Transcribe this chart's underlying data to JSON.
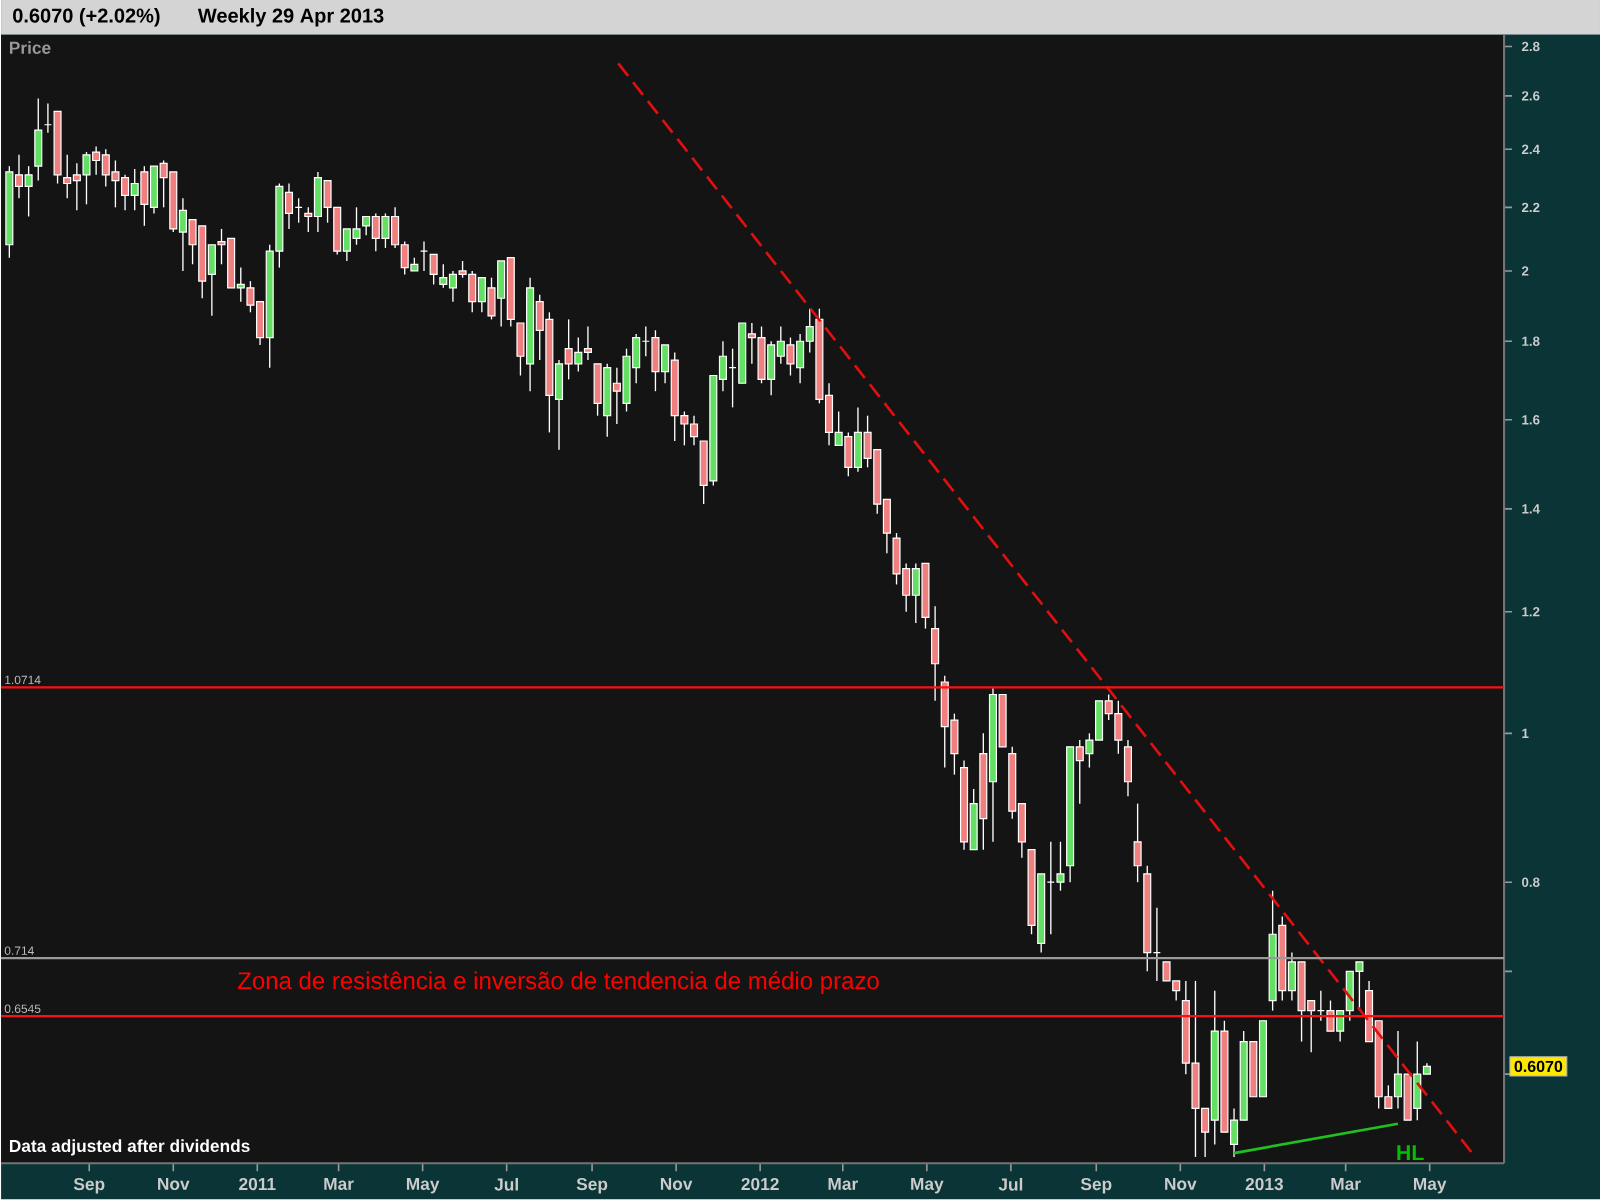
{
  "chart_data": {
    "type": "candlestick",
    "title": "0.6070 (+2.02%)",
    "subtitle": "Weekly  29 Apr 2013",
    "ylabel": "Price",
    "x": [
      "2010-07-05",
      "2010-07-12",
      "2010-07-19",
      "2010-07-26",
      "2010-08-02",
      "2010-08-09",
      "2010-08-16",
      "2010-08-23",
      "2010-08-30",
      "2010-09-06",
      "2010-09-13",
      "2010-09-20",
      "2010-09-27",
      "2010-10-04",
      "2010-10-11",
      "2010-10-18",
      "2010-10-25",
      "2010-11-01",
      "2010-11-08",
      "2010-11-15",
      "2010-11-22",
      "2010-11-29",
      "2010-12-06",
      "2010-12-13",
      "2010-12-20",
      "2010-12-27",
      "2011-01-03",
      "2011-01-10",
      "2011-01-17",
      "2011-01-24",
      "2011-01-31",
      "2011-02-07",
      "2011-02-14",
      "2011-02-21",
      "2011-02-28",
      "2011-03-07",
      "2011-03-14",
      "2011-03-21",
      "2011-03-28",
      "2011-04-04",
      "2011-04-11",
      "2011-04-18",
      "2011-04-25",
      "2011-05-02",
      "2011-05-09",
      "2011-05-16",
      "2011-05-23",
      "2011-05-30",
      "2011-06-06",
      "2011-06-13",
      "2011-06-20",
      "2011-06-27",
      "2011-07-04",
      "2011-07-11",
      "2011-07-18",
      "2011-07-25",
      "2011-08-01",
      "2011-08-08",
      "2011-08-15",
      "2011-08-22",
      "2011-08-29",
      "2011-09-05",
      "2011-09-12",
      "2011-09-19",
      "2011-09-26",
      "2011-10-03",
      "2011-10-10",
      "2011-10-17",
      "2011-10-24",
      "2011-10-31",
      "2011-11-07",
      "2011-11-14",
      "2011-11-21",
      "2011-11-28",
      "2011-12-05",
      "2011-12-12",
      "2011-12-19",
      "2011-12-26",
      "2012-01-02",
      "2012-01-09",
      "2012-01-16",
      "2012-01-23",
      "2012-01-30",
      "2012-02-06",
      "2012-02-13",
      "2012-02-20",
      "2012-02-27",
      "2012-03-05",
      "2012-03-12",
      "2012-03-19",
      "2012-03-26",
      "2012-04-02",
      "2012-04-09",
      "2012-04-16",
      "2012-04-23",
      "2012-04-30",
      "2012-05-07",
      "2012-05-14",
      "2012-05-21",
      "2012-05-28",
      "2012-06-04",
      "2012-06-11",
      "2012-06-18",
      "2012-06-25",
      "2012-07-02",
      "2012-07-09",
      "2012-07-16",
      "2012-07-23",
      "2012-07-30",
      "2012-08-06",
      "2012-08-13",
      "2012-08-20",
      "2012-08-27",
      "2012-09-03",
      "2012-09-10",
      "2012-09-17",
      "2012-09-24",
      "2012-10-01",
      "2012-10-08",
      "2012-10-15",
      "2012-10-22",
      "2012-10-29",
      "2012-11-05",
      "2012-11-12",
      "2012-11-19",
      "2012-11-26",
      "2012-12-03",
      "2012-12-10",
      "2012-12-17",
      "2012-12-24",
      "2012-12-31",
      "2013-01-07",
      "2013-01-14",
      "2013-01-21",
      "2013-01-28",
      "2013-02-04",
      "2013-02-11",
      "2013-02-18",
      "2013-02-25",
      "2013-03-04",
      "2013-03-11",
      "2013-03-18",
      "2013-03-25",
      "2013-04-01",
      "2013-04-08",
      "2013-04-15",
      "2013-04-22",
      "2013-04-29"
    ],
    "ohlc": [
      [
        2.08,
        2.34,
        2.04,
        2.32
      ],
      [
        2.31,
        2.38,
        2.23,
        2.27
      ],
      [
        2.27,
        2.34,
        2.17,
        2.31
      ],
      [
        2.34,
        2.59,
        2.29,
        2.47
      ],
      [
        2.49,
        2.57,
        2.46,
        2.49
      ],
      [
        2.54,
        2.54,
        2.28,
        2.31
      ],
      [
        2.3,
        2.38,
        2.23,
        2.28
      ],
      [
        2.31,
        2.35,
        2.19,
        2.29
      ],
      [
        2.31,
        2.39,
        2.21,
        2.38
      ],
      [
        2.39,
        2.41,
        2.31,
        2.36
      ],
      [
        2.38,
        2.4,
        2.27,
        2.31
      ],
      [
        2.32,
        2.36,
        2.2,
        2.29
      ],
      [
        2.3,
        2.31,
        2.19,
        2.24
      ],
      [
        2.24,
        2.33,
        2.19,
        2.28
      ],
      [
        2.32,
        2.34,
        2.14,
        2.21
      ],
      [
        2.2,
        2.34,
        2.18,
        2.34
      ],
      [
        2.35,
        2.36,
        2.2,
        2.3
      ],
      [
        2.32,
        2.32,
        2.12,
        2.13
      ],
      [
        2.12,
        2.23,
        2.0,
        2.19
      ],
      [
        2.16,
        2.16,
        2.02,
        2.08
      ],
      [
        2.14,
        2.14,
        1.92,
        1.97
      ],
      [
        1.99,
        2.08,
        1.87,
        2.08
      ],
      [
        2.09,
        2.13,
        2.02,
        2.08
      ],
      [
        2.1,
        2.1,
        1.95,
        1.95
      ],
      [
        1.95,
        2.01,
        1.91,
        1.96
      ],
      [
        1.95,
        1.97,
        1.88,
        1.9
      ],
      [
        1.91,
        1.91,
        1.79,
        1.81
      ],
      [
        1.81,
        2.08,
        1.73,
        2.06
      ],
      [
        2.06,
        2.28,
        2.01,
        2.27
      ],
      [
        2.25,
        2.28,
        2.13,
        2.18
      ],
      [
        2.2,
        2.23,
        2.15,
        2.2
      ],
      [
        2.18,
        2.2,
        2.12,
        2.17
      ],
      [
        2.17,
        2.32,
        2.12,
        2.3
      ],
      [
        2.29,
        2.29,
        2.15,
        2.2
      ],
      [
        2.2,
        2.2,
        2.05,
        2.06
      ],
      [
        2.06,
        2.13,
        2.03,
        2.13
      ],
      [
        2.1,
        2.2,
        2.08,
        2.13
      ],
      [
        2.14,
        2.17,
        2.11,
        2.17
      ],
      [
        2.17,
        2.18,
        2.06,
        2.1
      ],
      [
        2.1,
        2.18,
        2.07,
        2.17
      ],
      [
        2.17,
        2.2,
        2.07,
        2.08
      ],
      [
        2.08,
        2.09,
        1.99,
        2.01
      ],
      [
        2.0,
        2.04,
        2.0,
        2.02
      ],
      [
        2.06,
        2.09,
        2.0,
        2.06
      ],
      [
        2.05,
        2.05,
        1.96,
        1.99
      ],
      [
        1.96,
        2.02,
        1.95,
        1.98
      ],
      [
        1.95,
        2.0,
        1.91,
        1.99
      ],
      [
        2.0,
        2.03,
        1.98,
        1.99
      ],
      [
        1.99,
        2.0,
        1.88,
        1.91
      ],
      [
        1.91,
        1.98,
        1.88,
        1.98
      ],
      [
        1.95,
        1.98,
        1.86,
        1.87
      ],
      [
        1.92,
        2.03,
        1.84,
        2.03
      ],
      [
        2.04,
        2.04,
        1.84,
        1.86
      ],
      [
        1.85,
        1.85,
        1.71,
        1.76
      ],
      [
        1.74,
        1.98,
        1.67,
        1.95
      ],
      [
        1.91,
        1.93,
        1.75,
        1.83
      ],
      [
        1.86,
        1.88,
        1.57,
        1.66
      ],
      [
        1.65,
        1.75,
        1.53,
        1.74
      ],
      [
        1.78,
        1.86,
        1.7,
        1.74
      ],
      [
        1.74,
        1.81,
        1.72,
        1.77
      ],
      [
        1.78,
        1.84,
        1.75,
        1.77
      ],
      [
        1.74,
        1.74,
        1.61,
        1.64
      ],
      [
        1.61,
        1.74,
        1.56,
        1.73
      ],
      [
        1.69,
        1.73,
        1.59,
        1.67
      ],
      [
        1.64,
        1.78,
        1.62,
        1.76
      ],
      [
        1.73,
        1.82,
        1.69,
        1.81
      ],
      [
        1.8,
        1.84,
        1.76,
        1.8
      ],
      [
        1.81,
        1.83,
        1.67,
        1.72
      ],
      [
        1.72,
        1.79,
        1.69,
        1.79
      ],
      [
        1.75,
        1.77,
        1.55,
        1.61
      ],
      [
        1.61,
        1.62,
        1.54,
        1.59
      ],
      [
        1.59,
        1.61,
        1.54,
        1.56
      ],
      [
        1.55,
        1.55,
        1.41,
        1.45
      ],
      [
        1.46,
        1.71,
        1.45,
        1.71
      ],
      [
        1.7,
        1.8,
        1.67,
        1.76
      ],
      [
        1.73,
        1.78,
        1.63,
        1.73
      ],
      [
        1.69,
        1.85,
        1.69,
        1.85
      ],
      [
        1.82,
        1.85,
        1.74,
        1.81
      ],
      [
        1.81,
        1.84,
        1.69,
        1.7
      ],
      [
        1.7,
        1.8,
        1.66,
        1.79
      ],
      [
        1.76,
        1.84,
        1.74,
        1.8
      ],
      [
        1.79,
        1.81,
        1.71,
        1.74
      ],
      [
        1.73,
        1.82,
        1.69,
        1.8
      ],
      [
        1.8,
        1.89,
        1.77,
        1.84
      ],
      [
        1.86,
        1.89,
        1.64,
        1.65
      ],
      [
        1.66,
        1.69,
        1.54,
        1.57
      ],
      [
        1.54,
        1.62,
        1.54,
        1.57
      ],
      [
        1.56,
        1.57,
        1.47,
        1.49
      ],
      [
        1.49,
        1.63,
        1.48,
        1.57
      ],
      [
        1.57,
        1.61,
        1.49,
        1.51
      ],
      [
        1.53,
        1.53,
        1.39,
        1.41
      ],
      [
        1.42,
        1.42,
        1.31,
        1.35
      ],
      [
        1.34,
        1.35,
        1.25,
        1.27
      ],
      [
        1.28,
        1.29,
        1.2,
        1.23
      ],
      [
        1.23,
        1.29,
        1.18,
        1.28
      ],
      [
        1.29,
        1.29,
        1.17,
        1.19
      ],
      [
        1.17,
        1.21,
        1.05,
        1.11
      ],
      [
        1.08,
        1.09,
        0.95,
        1.01
      ],
      [
        1.02,
        1.03,
        0.94,
        0.97
      ],
      [
        0.95,
        0.96,
        0.84,
        0.85
      ],
      [
        0.84,
        0.92,
        0.84,
        0.9
      ],
      [
        0.97,
        1.0,
        0.84,
        0.88
      ],
      [
        0.93,
        1.07,
        0.85,
        1.06
      ],
      [
        1.06,
        1.06,
        0.98,
        0.98
      ],
      [
        0.97,
        0.98,
        0.88,
        0.89
      ],
      [
        0.9,
        0.9,
        0.83,
        0.85
      ],
      [
        0.84,
        0.84,
        0.74,
        0.75
      ],
      [
        0.73,
        0.81,
        0.72,
        0.81
      ],
      [
        0.8,
        0.85,
        0.74,
        0.8
      ],
      [
        0.8,
        0.85,
        0.79,
        0.81
      ],
      [
        0.82,
        0.98,
        0.8,
        0.98
      ],
      [
        0.98,
        0.99,
        0.9,
        0.96
      ],
      [
        0.97,
        1.0,
        0.95,
        0.99
      ],
      [
        0.99,
        1.05,
        0.99,
        1.05
      ],
      [
        1.05,
        1.06,
        1.02,
        1.03
      ],
      [
        1.03,
        1.05,
        0.97,
        0.99
      ],
      [
        0.98,
        0.99,
        0.91,
        0.93
      ],
      [
        0.85,
        0.9,
        0.8,
        0.82
      ],
      [
        0.81,
        0.82,
        0.7,
        0.72
      ],
      [
        0.72,
        0.77,
        0.69,
        0.72
      ],
      [
        0.71,
        0.71,
        0.69,
        0.69
      ],
      [
        0.69,
        0.69,
        0.67,
        0.68
      ],
      [
        0.67,
        0.69,
        0.6,
        0.61
      ],
      [
        0.61,
        0.69,
        0.53,
        0.57
      ],
      [
        0.57,
        0.57,
        0.53,
        0.55
      ],
      [
        0.56,
        0.68,
        0.54,
        0.64
      ],
      [
        0.64,
        0.65,
        0.55,
        0.55
      ],
      [
        0.54,
        0.57,
        0.53,
        0.56
      ],
      [
        0.56,
        0.64,
        0.56,
        0.63
      ],
      [
        0.63,
        0.63,
        0.58,
        0.58
      ],
      [
        0.58,
        0.65,
        0.58,
        0.65
      ],
      [
        0.67,
        0.79,
        0.66,
        0.74
      ],
      [
        0.75,
        0.76,
        0.67,
        0.68
      ],
      [
        0.68,
        0.72,
        0.67,
        0.71
      ],
      [
        0.71,
        0.71,
        0.63,
        0.66
      ],
      [
        0.67,
        0.67,
        0.62,
        0.66
      ],
      [
        0.66,
        0.68,
        0.65,
        0.66
      ],
      [
        0.66,
        0.67,
        0.64,
        0.64
      ],
      [
        0.64,
        0.66,
        0.63,
        0.66
      ],
      [
        0.66,
        0.7,
        0.65,
        0.7
      ],
      [
        0.7,
        0.71,
        0.66,
        0.71
      ],
      [
        0.68,
        0.69,
        0.63,
        0.63
      ],
      [
        0.65,
        0.65,
        0.57,
        0.58
      ],
      [
        0.58,
        0.59,
        0.57,
        0.57
      ],
      [
        0.58,
        0.64,
        0.57,
        0.6
      ],
      [
        0.6,
        0.6,
        0.56,
        0.56
      ],
      [
        0.57,
        0.63,
        0.56,
        0.6
      ],
      [
        0.6,
        0.61,
        0.6,
        0.607
      ]
    ],
    "series": [
      {
        "type": "line",
        "x": [
          "2011-09-20",
          "2013-06-03"
        ],
        "values": [
          2.73,
          0.53
        ],
        "color": "#e01010",
        "line_style": "dashed"
      },
      {
        "type": "line",
        "x": [
          "2012-12-10",
          "2013-04-08"
        ],
        "values": [
          0.533,
          0.557
        ],
        "color": "#20c020",
        "line_style": "solid"
      }
    ],
    "log": "y",
    "xlim": [
      "2010-06-29",
      "2013-06-24"
    ],
    "xticks": [
      {
        "value": "2010-09-01",
        "label": "Sep"
      },
      {
        "value": "2010-11-01",
        "label": "Nov"
      },
      {
        "value": "2011-01-01",
        "label": "2011"
      },
      {
        "value": "2011-03-01",
        "label": "Mar"
      },
      {
        "value": "2011-05-01",
        "label": "May"
      },
      {
        "value": "2011-07-01",
        "label": "Jul"
      },
      {
        "value": "2011-09-01",
        "label": "Sep"
      },
      {
        "value": "2011-11-01",
        "label": "Nov"
      },
      {
        "value": "2012-01-01",
        "label": "2012"
      },
      {
        "value": "2012-03-01",
        "label": "Mar"
      },
      {
        "value": "2012-05-01",
        "label": "May"
      },
      {
        "value": "2012-07-01",
        "label": "Jul"
      },
      {
        "value": "2012-09-01",
        "label": "Sep"
      },
      {
        "value": "2012-11-01",
        "label": "Nov"
      },
      {
        "value": "2013-01-01",
        "label": "2013"
      },
      {
        "value": "2013-03-01",
        "label": "Mar"
      },
      {
        "value": "2013-05-01",
        "label": "May"
      }
    ],
    "ylim": [
      0.525,
      2.85
    ],
    "yticks": [
      {
        "value": 0.6,
        "label": null
      },
      {
        "value": 0.7,
        "label": null
      },
      0.8,
      1,
      1.2,
      1.4,
      1.6,
      1.8,
      2,
      2.2,
      2.4,
      2.6,
      2.8
    ],
    "ref_lines": [
      {
        "axis": "y",
        "value": 1.0714,
        "label": "1.0714",
        "color": "#ff1010"
      },
      {
        "axis": "y",
        "value": 0.714,
        "label": "0.714",
        "color": "#9a9a9a"
      },
      {
        "axis": "y",
        "value": 0.6545,
        "label": "0.6545",
        "color": "#ff1010"
      }
    ],
    "annotations": [
      "Zona de resistência e inversão de tendencia de médio prazo",
      "Data adjusted after dividends",
      "HL",
      {
        "text": "0.6070",
        "y": 0.607
      }
    ],
    "grid": false
  }
}
